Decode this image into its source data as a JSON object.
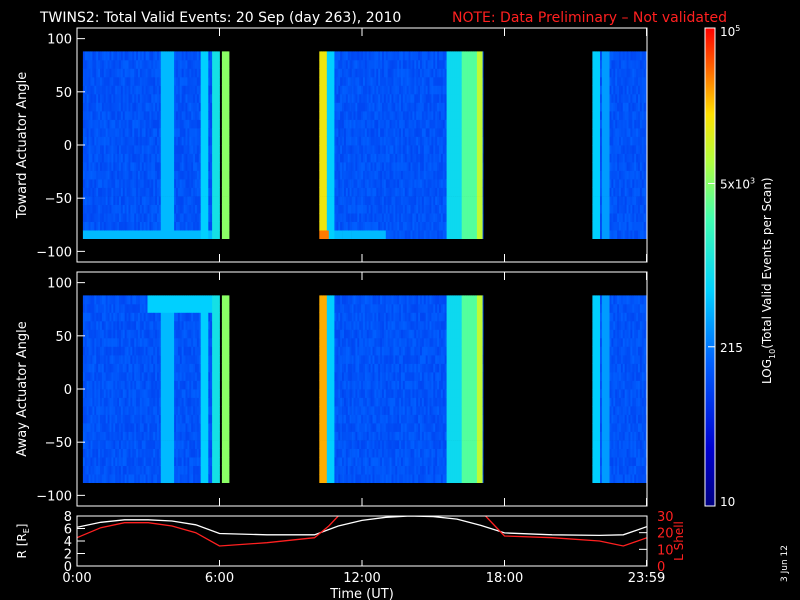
{
  "title": {
    "main": "TWINS2: Total Valid Events: 20 Sep (day 263), 2010",
    "note": "NOTE: Data Preliminary – Not validated"
  },
  "stamp": "3 Jun 12",
  "colors": {
    "background": "#000000",
    "axes": "#ffffff",
    "note": "#ff2020",
    "lshell": "#ff2020",
    "radius": "#ffffff"
  },
  "chart_data": [
    {
      "type": "heatmap",
      "ylabel": "Toward Actuator Angle",
      "ylim": [
        -110,
        110
      ],
      "yticks": [
        "100",
        "50",
        "0",
        "−50",
        "−100"
      ],
      "ytick_values": [
        100,
        50,
        0,
        -50,
        -100
      ],
      "data_x_hours": [
        [
          0.25,
          6.0
        ],
        [
          6.1,
          6.4
        ],
        [
          10.2,
          17.1
        ],
        [
          21.7,
          23.98
        ]
      ],
      "data_y_range": [
        -88,
        88
      ]
    },
    {
      "type": "heatmap",
      "ylabel": "Away Actuator Angle",
      "ylim": [
        -110,
        110
      ],
      "yticks": [
        "100",
        "50",
        "0",
        "−50",
        "−100"
      ],
      "ytick_values": [
        100,
        50,
        0,
        -50,
        -100
      ],
      "data_x_hours": [
        [
          0.25,
          6.0
        ],
        [
          6.1,
          6.4
        ],
        [
          10.2,
          17.1
        ],
        [
          21.7,
          23.98
        ]
      ],
      "data_y_range": [
        -88,
        88
      ]
    },
    {
      "type": "line",
      "ylabel_left": "R [R",
      "ylabel_left_sub": "E",
      "ylabel_left_close": "]",
      "ylabel_right": "L Shell",
      "ylim_left": [
        0,
        8
      ],
      "ylim_right": [
        0,
        30
      ],
      "yticks_left": [
        "8",
        "6",
        "4",
        "2",
        "0"
      ],
      "yticks_left_values": [
        8,
        6,
        4,
        2,
        0
      ],
      "yticks_right": [
        "30",
        "20",
        "10",
        "0"
      ],
      "yticks_right_values": [
        30,
        20,
        10,
        0
      ],
      "xlabel": "Time (UT)",
      "xticks": [
        "0:00",
        "6:00",
        "12:00",
        "18:00",
        "23:59"
      ],
      "xtick_values": [
        0,
        6,
        12,
        18,
        23.98
      ],
      "xlim": [
        0,
        24
      ],
      "series": [
        {
          "name": "R",
          "x": [
            0,
            1,
            2,
            3,
            4,
            5,
            6,
            8,
            10,
            11,
            12,
            13,
            14,
            15,
            16,
            17,
            18,
            20,
            22,
            23,
            24
          ],
          "values": [
            6.2,
            7.0,
            7.4,
            7.4,
            7.2,
            6.6,
            5.2,
            5.0,
            5.0,
            6.4,
            7.3,
            7.8,
            8.0,
            7.9,
            7.5,
            6.5,
            5.3,
            5.0,
            4.9,
            5.0,
            6.3
          ]
        },
        {
          "name": "L Shell",
          "x": [
            0,
            1,
            2,
            3,
            4,
            5,
            6,
            8,
            10,
            10.6,
            11.2,
            17,
            17.6,
            18,
            20,
            22,
            23,
            24
          ],
          "values": [
            17,
            23,
            26,
            26,
            24,
            20,
            12,
            14,
            17,
            24,
            33,
            33,
            24,
            18,
            17,
            15,
            12,
            17
          ]
        }
      ]
    }
  ],
  "colorbar": {
    "label": "LOG",
    "label_sub": "10",
    "label_rest": "(Total Valid Events per Scan)",
    "ticks": [
      {
        "text": "10",
        "sup": "5",
        "value": 100000
      },
      {
        "text": "5x10",
        "sup": "3",
        "value": 5000
      },
      {
        "text": "215",
        "sup": "",
        "value": 215
      },
      {
        "text": "10",
        "sup": "",
        "value": 10
      }
    ],
    "range": [
      10,
      100000
    ]
  }
}
